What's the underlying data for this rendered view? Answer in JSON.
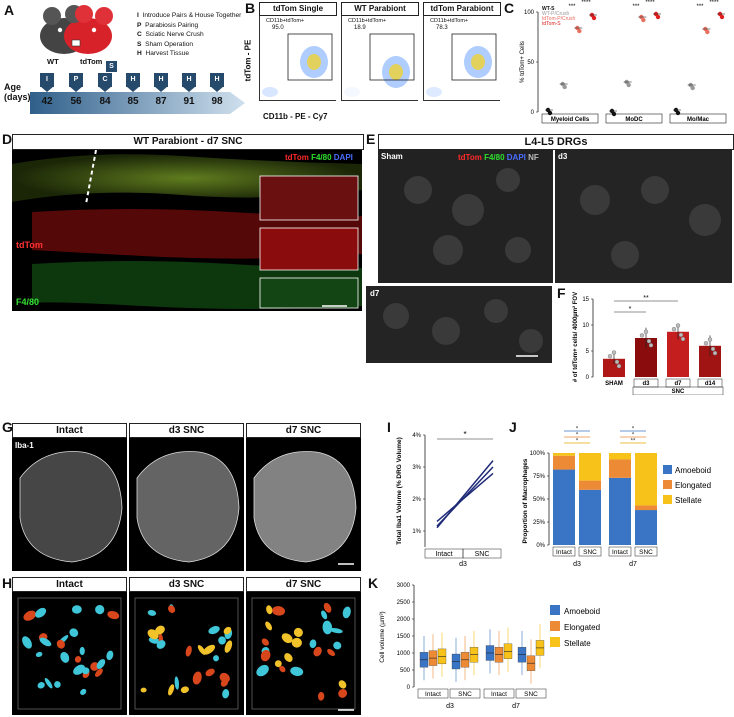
{
  "panels": {
    "A": {
      "label": "A",
      "mouse_labels": [
        "WT",
        "tdTom"
      ],
      "legend": [
        {
          "key": "I",
          "text": "Introduce Pairs & House Together"
        },
        {
          "key": "P",
          "text": "Parabiosis Pairing"
        },
        {
          "key": "C",
          "text": "Sciatic Nerve Crush"
        },
        {
          "key": "S",
          "text": "Sham Operation"
        },
        {
          "key": "H",
          "text": "Harvest Tissue"
        }
      ],
      "age_label": "Age\n(days)",
      "timeline_days": [
        "42",
        "56",
        "84",
        "85",
        "87",
        "91",
        "98"
      ],
      "timeline_events": [
        "I",
        "P",
        "C",
        "H",
        "H",
        "H",
        "H"
      ],
      "extra_event": "S"
    },
    "B": {
      "label": "B",
      "plots": [
        {
          "title": "tdTom Single",
          "gate": "CD11b+tdTom+",
          "value": "95.0"
        },
        {
          "title": "WT Parabiont",
          "gate": "CD11b+tdTom+",
          "value": "18.9"
        },
        {
          "title": "tdTom Parabiont",
          "gate": "CD11b+tdTom+",
          "value": "78.3"
        }
      ],
      "ylabel": "tdTom - PE",
      "xlabel": "CD11b - PE - Cy7"
    },
    "C": {
      "label": "C",
      "legend": [
        {
          "name": "WT-S",
          "color": "#111111"
        },
        {
          "name": "WT-P/Crush",
          "color": "#999999"
        },
        {
          "name": "tdTom-P/Crush",
          "color": "#e87060"
        },
        {
          "name": "tdTom-S",
          "color": "#e02020"
        }
      ],
      "ylabel": "% tdTom+ Cells",
      "yticks": [
        "0",
        "50",
        "100"
      ],
      "categories": [
        "Myeloid Cells",
        "MoDC",
        "Mo/Mac"
      ],
      "sig": [
        "***",
        "****",
        "***",
        "****",
        "***",
        "****"
      ]
    },
    "D": {
      "label": "D",
      "title": "WT Parabiont - d7 SNC",
      "channels": {
        "a": "tdTom",
        "b": "F4/80",
        "c": "DAPI"
      },
      "row_labels": [
        "tdTom",
        "F4/80"
      ]
    },
    "E": {
      "label": "E",
      "title": "L4-L5 DRGs",
      "channels": {
        "a": "tdTom",
        "b": "F4/80",
        "c": "DAPI",
        "d": "NF"
      },
      "sub_labels": [
        "Sham",
        "d3",
        "d7"
      ]
    },
    "F": {
      "label": "F",
      "ylabel": "# of tdTom+ cells/ 4000µm² FOV",
      "yticks": [
        "0",
        "5",
        "10",
        "15"
      ],
      "categories": [
        "SHAM",
        "d3",
        "d7",
        "d14"
      ],
      "group_label": "SNC",
      "sig": [
        "*",
        "**"
      ]
    },
    "G": {
      "label": "G",
      "titles": [
        "Intact",
        "d3 SNC",
        "d7 SNC"
      ],
      "stain": "Iba-1"
    },
    "H": {
      "label": "H",
      "titles": [
        "Intact",
        "d3 SNC",
        "d7 SNC"
      ]
    },
    "I": {
      "label": "I",
      "ylabel": "Total Iba1 Volume (% DRG Volume)",
      "yticks": [
        "1%",
        "2%",
        "3%",
        "4%"
      ],
      "xcats": [
        "Intact",
        "SNC"
      ],
      "group": "d3",
      "sig": "*"
    },
    "J": {
      "label": "J",
      "ylabel": "Proportion of Macrophages",
      "yticks": [
        "0%",
        "25%",
        "50%",
        "75%",
        "100%"
      ],
      "xcats": [
        "Intact",
        "SNC",
        "Intact",
        "SNC"
      ],
      "groups": [
        "d3",
        "d7"
      ],
      "legend": [
        {
          "name": "Amoeboid",
          "color": "#3a74c4"
        },
        {
          "name": "Elongated",
          "color": "#ec8a35"
        },
        {
          "name": "Stellate",
          "color": "#f7c21a"
        }
      ],
      "sig": [
        "*",
        "*",
        "*",
        "*",
        "*",
        "**"
      ]
    },
    "K": {
      "label": "K",
      "ylabel": "Cell volume (µm³)",
      "yticks": [
        "0",
        "500",
        "1000",
        "1500",
        "2000",
        "2500",
        "3000"
      ],
      "xcats": [
        "Intact",
        "SNC",
        "Intact",
        "SNC"
      ],
      "groups": [
        "d3",
        "d7"
      ],
      "legend": [
        {
          "name": "Amoeboid",
          "color": "#3a74c4"
        },
        {
          "name": "Elongated",
          "color": "#ec8a35"
        },
        {
          "name": "Stellate",
          "color": "#f7c21a"
        }
      ]
    }
  },
  "chart_data": [
    {
      "type": "scatter",
      "panel": "C",
      "categories": [
        "Myeloid Cells",
        "MoDC",
        "Mo/Mac"
      ],
      "ylim": [
        0,
        100
      ],
      "series": [
        {
          "name": "WT-S",
          "values": [
            2,
            1,
            2
          ]
        },
        {
          "name": "WT-P/Crush",
          "values": [
            28,
            30,
            27
          ]
        },
        {
          "name": "tdTom-P/Crush",
          "values": [
            84,
            95,
            83
          ]
        },
        {
          "name": "tdTom-S",
          "values": [
            97,
            98,
            98
          ]
        }
      ]
    },
    {
      "type": "bar",
      "panel": "F",
      "categories": [
        "SHAM",
        "d3",
        "d7",
        "d14"
      ],
      "values": [
        3.5,
        7.5,
        8.7,
        6.0
      ],
      "errors": [
        1.0,
        2.0,
        1.5,
        2.0
      ],
      "ylim": [
        0,
        15
      ]
    },
    {
      "type": "line",
      "panel": "I",
      "categories": [
        "Intact",
        "SNC"
      ],
      "ylim": [
        0.5,
        4
      ],
      "series": [
        {
          "values": [
            1.1,
            3.2
          ]
        },
        {
          "values": [
            1.15,
            3.0
          ]
        },
        {
          "values": [
            1.3,
            2.8
          ]
        }
      ]
    },
    {
      "type": "bar",
      "panel": "J",
      "categories": [
        "d3 Intact",
        "d3 SNC",
        "d7 Intact",
        "d7 SNC"
      ],
      "ylim": [
        0,
        100
      ],
      "series": [
        {
          "name": "Amoeboid",
          "values": [
            82,
            60,
            73,
            38
          ]
        },
        {
          "name": "Elongated",
          "values": [
            15,
            10,
            20,
            5
          ]
        },
        {
          "name": "Stellate",
          "values": [
            3,
            30,
            7,
            57
          ]
        }
      ]
    },
    {
      "type": "box",
      "panel": "K",
      "categories": [
        "d3 Intact",
        "d3 SNC",
        "d7 Intact",
        "d7 SNC"
      ],
      "ylim": [
        0,
        3000
      ],
      "series": [
        {
          "name": "Amoeboid",
          "medians": [
            800,
            750,
            1000,
            950
          ]
        },
        {
          "name": "Elongated",
          "medians": [
            850,
            800,
            950,
            700
          ]
        },
        {
          "name": "Stellate",
          "medians": [
            900,
            950,
            1050,
            1150
          ]
        }
      ]
    }
  ]
}
